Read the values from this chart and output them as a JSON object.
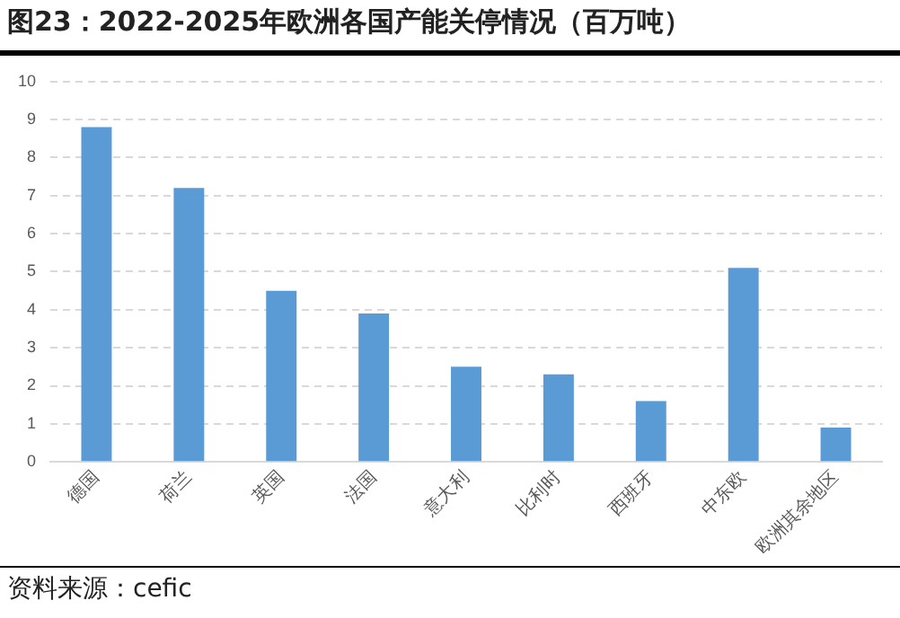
{
  "chart_data": {
    "type": "bar",
    "title": "图23：2022-2025年欧洲各国产能关停情况（百万吨）",
    "categories": [
      "德国",
      "荷兰",
      "英国",
      "法国",
      "意大利",
      "比利时",
      "西班牙",
      "中东欧",
      "欧洲其余地区"
    ],
    "values": [
      8.8,
      7.2,
      4.5,
      3.9,
      2.5,
      2.3,
      1.6,
      5.1,
      0.9
    ],
    "color": "#5b9bd5",
    "ylim": [
      0,
      10
    ],
    "yticks": [
      0,
      1,
      2,
      3,
      4,
      5,
      6,
      7,
      8,
      9,
      10
    ],
    "grid": "y",
    "annotations": [
      "资料来源：cefic"
    ]
  }
}
